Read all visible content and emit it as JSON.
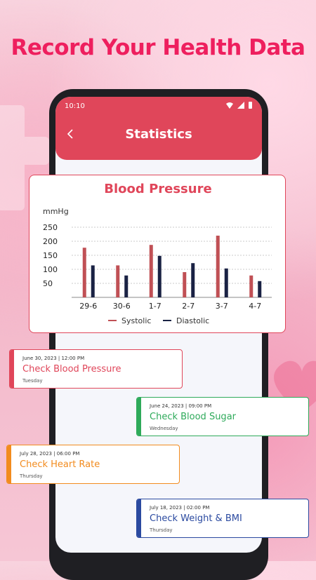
{
  "headline": "Record Your Health Data",
  "status_bar": {
    "time": "10:10"
  },
  "appbar": {
    "back_icon": "chevron-left-icon",
    "title": "Statistics"
  },
  "colors": {
    "primary": "#e0465a",
    "headline": "#ee1f5e",
    "systolic": "#c05055",
    "diastolic": "#1a2244",
    "blood_sugar": "#2eaa5a",
    "heart_rate": "#f28b1e",
    "weight_bmi": "#2b4aa0"
  },
  "chart_data": {
    "type": "bar",
    "title": "Blood Pressure",
    "ylabel": "mmHg",
    "xlabel": "",
    "categories": [
      "29-6",
      "30-6",
      "1-7",
      "2-7",
      "3-7",
      "4-7"
    ],
    "yticks": [
      50,
      100,
      150,
      200,
      250
    ],
    "ylim": [
      0,
      250
    ],
    "grid": true,
    "legend": "bottom",
    "series": [
      {
        "name": "Systolic",
        "values": [
          177,
          114,
          187,
          90,
          220,
          78
        ]
      },
      {
        "name": "Diastolic",
        "values": [
          114,
          78,
          148,
          122,
          103,
          58
        ]
      }
    ]
  },
  "reminders": [
    {
      "date": "June 30, 2023",
      "time": "12:00 PM",
      "title": "Check Blood Pressure",
      "day": "Tuesday",
      "color": "#e0465a"
    },
    {
      "date": "June 24, 2023",
      "time": "09:00 PM",
      "title": "Check Blood Sugar",
      "day": "Wednesday",
      "color": "#2eaa5a"
    },
    {
      "date": "July 28, 2023",
      "time": "06:00 PM",
      "title": "Check Heart Rate",
      "day": "Thursday",
      "color": "#f28b1e"
    },
    {
      "date": "July 18, 2023",
      "time": "02:00 PM",
      "title": "Check Weight & BMI",
      "day": "Thursday",
      "color": "#2b4aa0"
    }
  ]
}
